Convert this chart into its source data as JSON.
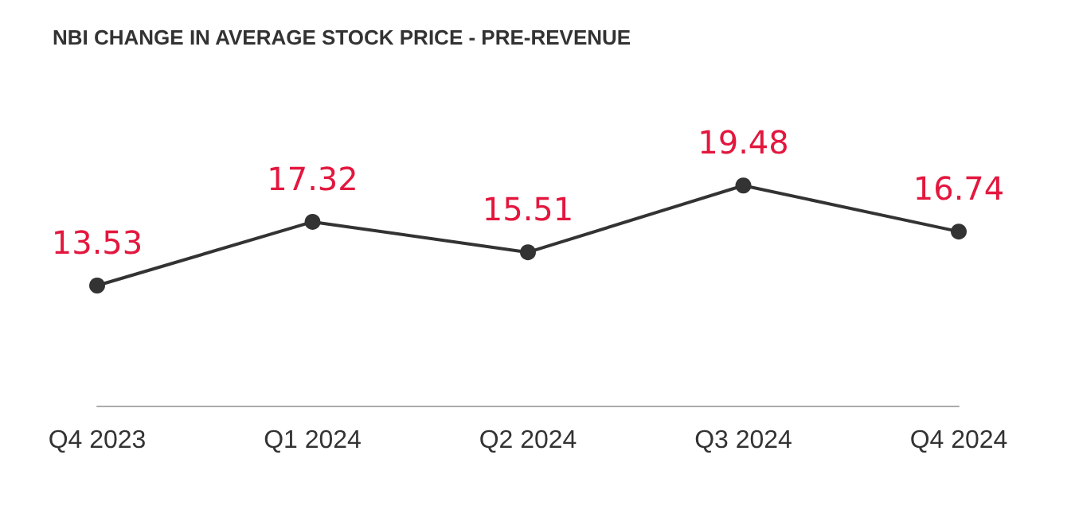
{
  "chart_data": {
    "type": "line",
    "title": "NBI CHANGE IN AVERAGE STOCK PRICE - PRE-REVENUE",
    "categories": [
      "Q4 2023",
      "Q1 2024",
      "Q2 2024",
      "Q3 2024",
      "Q4 2024"
    ],
    "series": [
      {
        "color": "#333333",
        "values": [
          13.53,
          17.32,
          15.51,
          19.48,
          16.74
        ]
      }
    ],
    "data_labels": true,
    "marker": "circle",
    "line_style": "solid"
  }
}
